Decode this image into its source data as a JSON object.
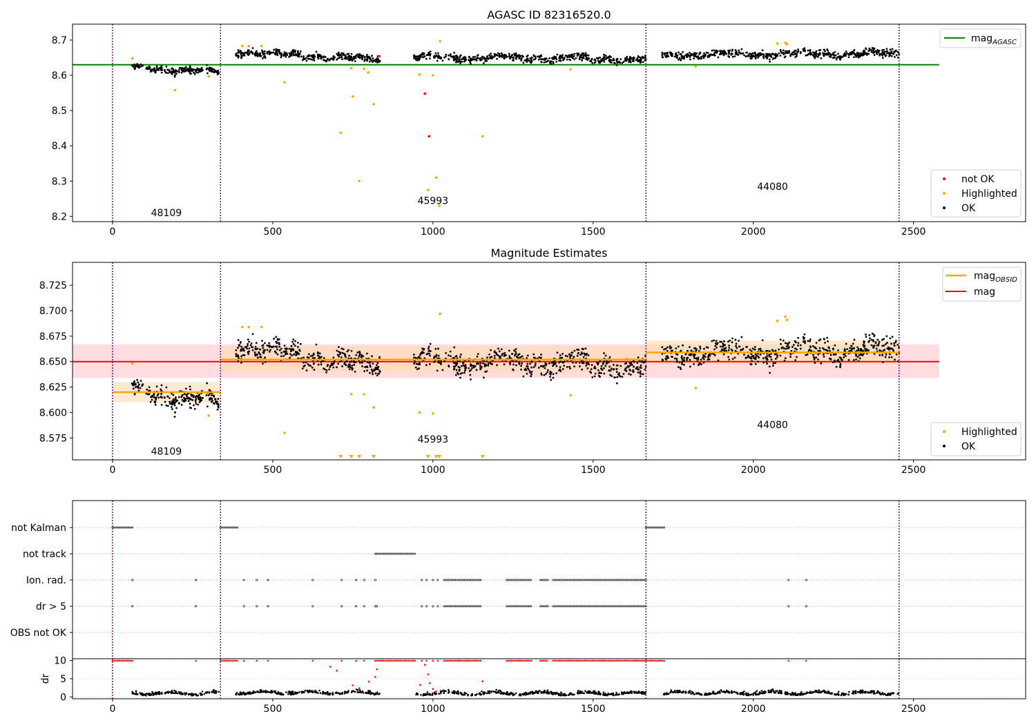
{
  "colors": {
    "ok": "#000000",
    "highlighted": "#ffa500",
    "not_ok": "#ff0000",
    "agasc_line": "#008000",
    "obs_mag": "#ffa500",
    "mag": "#ff0000",
    "obs_boundary": "#800080",
    "mag_band": "#ffc0cb",
    "obs_band": "#ffdab0"
  },
  "chart_data": [
    {
      "type": "scatter",
      "title": "AGASC ID 82316520.0",
      "xlim": [
        -125,
        2850
      ],
      "ylim": [
        8.185,
        8.745
      ],
      "xticks": [
        0,
        500,
        1000,
        1500,
        2000,
        2500
      ],
      "yticks": [
        8.2,
        8.3,
        8.4,
        8.5,
        8.6,
        8.7
      ],
      "grid": false,
      "legend_upper": {
        "position": "top-right",
        "entries": [
          {
            "label": "mag",
            "sub": "AGASC"
          }
        ]
      },
      "legend_lower": {
        "position": "bottom-right",
        "entries": [
          "not OK",
          "Highlighted",
          "OK"
        ]
      },
      "agasc_mag": 8.63,
      "agasc_x_range": [
        -125,
        2580
      ],
      "obsid_labels": [
        {
          "text": "48109",
          "x": 168,
          "y": 8.21
        },
        {
          "text": "45993",
          "x": 1000,
          "y": 8.245
        },
        {
          "text": "44080",
          "x": 2060,
          "y": 8.285
        }
      ],
      "obs_boundaries": [
        0,
        337,
        1665,
        2455
      ],
      "ok_segments": [
        {
          "x0": 60,
          "x1": 335,
          "level": 8.624,
          "trend": -0.016,
          "noise": 0.009,
          "count": 220
        },
        {
          "x0": 385,
          "x1": 835,
          "level": 8.666,
          "trend": -0.022,
          "noise": 0.009,
          "count": 360
        },
        {
          "x0": 940,
          "x1": 1665,
          "level": 8.652,
          "trend": -0.007,
          "noise": 0.01,
          "count": 520
        },
        {
          "x0": 1715,
          "x1": 2455,
          "level": 8.658,
          "trend": 0.004,
          "noise": 0.01,
          "count": 560
        }
      ],
      "highlighted": [
        {
          "x": 62,
          "y": 8.648
        },
        {
          "x": 195,
          "y": 8.558
        },
        {
          "x": 300,
          "y": 8.597
        },
        {
          "x": 405,
          "y": 8.683
        },
        {
          "x": 425,
          "y": 8.683
        },
        {
          "x": 465,
          "y": 8.683
        },
        {
          "x": 537,
          "y": 8.58
        },
        {
          "x": 712,
          "y": 8.437
        },
        {
          "x": 745,
          "y": 8.62
        },
        {
          "x": 750,
          "y": 8.54
        },
        {
          "x": 770,
          "y": 8.3
        },
        {
          "x": 785,
          "y": 8.618
        },
        {
          "x": 798,
          "y": 8.608
        },
        {
          "x": 815,
          "y": 8.518
        },
        {
          "x": 830,
          "y": 8.653
        },
        {
          "x": 958,
          "y": 8.602
        },
        {
          "x": 985,
          "y": 8.275
        },
        {
          "x": 1000,
          "y": 8.6
        },
        {
          "x": 1010,
          "y": 8.31
        },
        {
          "x": 1020,
          "y": 8.23
        },
        {
          "x": 1022,
          "y": 8.697
        },
        {
          "x": 1155,
          "y": 8.427
        },
        {
          "x": 1430,
          "y": 8.617
        },
        {
          "x": 1820,
          "y": 8.625
        },
        {
          "x": 2075,
          "y": 8.69
        },
        {
          "x": 2100,
          "y": 8.692
        },
        {
          "x": 2105,
          "y": 8.688
        }
      ],
      "not_ok": [
        {
          "x": 828,
          "y": 8.654
        },
        {
          "x": 975,
          "y": 8.548
        },
        {
          "x": 988,
          "y": 8.427
        }
      ]
    },
    {
      "type": "scatter",
      "title": "Magnitude Estimates",
      "xlim": [
        -125,
        2850
      ],
      "ylim": [
        8.5535,
        8.7475
      ],
      "xticks": [
        0,
        500,
        1000,
        1500,
        2000,
        2500
      ],
      "yticks": [
        8.575,
        8.6,
        8.625,
        8.65,
        8.675,
        8.7,
        8.725
      ],
      "ytick_labels": [
        "8.575",
        "8.600",
        "8.625",
        "8.650",
        "8.675",
        "8.700",
        "8.725"
      ],
      "grid": false,
      "legend_upper": {
        "position": "top-right",
        "entries": [
          {
            "label": "mag",
            "sub": "OBSID"
          },
          {
            "label": "mag",
            "sub": ""
          }
        ]
      },
      "legend_lower": {
        "position": "bottom-right",
        "entries": [
          "Highlighted",
          "OK"
        ]
      },
      "mag": 8.65,
      "mag_band": [
        8.634,
        8.667
      ],
      "mag_x_range": [
        -125,
        2580
      ],
      "obsid_labels": [
        {
          "text": "48109",
          "x": 168,
          "y": 8.562
        },
        {
          "text": "45993",
          "x": 1000,
          "y": 8.574
        },
        {
          "text": "44080",
          "x": 2060,
          "y": 8.588
        }
      ],
      "obs_mags": [
        {
          "x0": 0,
          "x1": 337,
          "mag": 8.62,
          "err": 0.01
        },
        {
          "x0": 337,
          "x1": 1665,
          "mag": 8.652,
          "err": 0.013
        },
        {
          "x0": 1665,
          "x1": 2455,
          "mag": 8.659,
          "err": 0.012
        }
      ],
      "obs_boundaries": [
        0,
        337,
        1665,
        2455
      ],
      "ok_segments": [
        {
          "x0": 60,
          "x1": 335,
          "level": 8.624,
          "trend": -0.016,
          "noise": 0.009,
          "count": 220
        },
        {
          "x0": 385,
          "x1": 835,
          "level": 8.666,
          "trend": -0.022,
          "noise": 0.009,
          "count": 360
        },
        {
          "x0": 940,
          "x1": 1665,
          "level": 8.652,
          "trend": -0.007,
          "noise": 0.01,
          "count": 520
        },
        {
          "x0": 1715,
          "x1": 2455,
          "level": 8.658,
          "trend": 0.004,
          "noise": 0.01,
          "count": 560
        }
      ],
      "highlighted": [
        {
          "x": 62,
          "y": 8.648
        },
        {
          "x": 300,
          "y": 8.597
        },
        {
          "x": 405,
          "y": 8.684
        },
        {
          "x": 425,
          "y": 8.684
        },
        {
          "x": 465,
          "y": 8.684
        },
        {
          "x": 537,
          "y": 8.58
        },
        {
          "x": 745,
          "y": 8.618
        },
        {
          "x": 785,
          "y": 8.618
        },
        {
          "x": 815,
          "y": 8.605
        },
        {
          "x": 958,
          "y": 8.6
        },
        {
          "x": 1000,
          "y": 8.599
        },
        {
          "x": 1022,
          "y": 8.697
        },
        {
          "x": 1430,
          "y": 8.617
        },
        {
          "x": 1820,
          "y": 8.624
        },
        {
          "x": 2075,
          "y": 8.69
        },
        {
          "x": 2100,
          "y": 8.694
        },
        {
          "x": 2105,
          "y": 8.691
        }
      ],
      "off_scale_markers": [
        712,
        745,
        770,
        815,
        985,
        1010,
        1020,
        1155
      ]
    },
    {
      "type": "scatter",
      "title": "",
      "xlim": [
        -125,
        2850
      ],
      "flag_rows": [
        "not Kalman",
        "not track",
        "Ion. rad.",
        "dr > 5",
        "OBS not OK"
      ],
      "flag_spans": {
        "not Kalman": [
          [
            0,
            62
          ],
          [
            337,
            390
          ],
          [
            1665,
            1722
          ]
        ],
        "not track": [
          [
            820,
            945
          ]
        ],
        "Ion. rad.": [
          [
            1035,
            1150
          ],
          [
            1230,
            1310
          ],
          [
            1335,
            1360
          ],
          [
            1375,
            1665
          ]
        ],
        "dr > 5": [
          [
            1035,
            1150
          ],
          [
            1230,
            1310
          ],
          [
            1335,
            1360
          ],
          [
            1375,
            1665
          ]
        ],
        "OBS not OK": []
      },
      "flag_points": {
        "Ion. rad.": [
          62,
          260,
          410,
          450,
          485,
          625,
          715,
          760,
          785,
          820,
          965,
          980,
          1000,
          1015,
          2110,
          2165
        ],
        "dr > 5": [
          62,
          260,
          410,
          450,
          485,
          625,
          715,
          760,
          785,
          820,
          825,
          965,
          980,
          1000,
          1015,
          2110,
          2165
        ]
      },
      "obs_boundaries": [
        0,
        337,
        1665,
        2455
      ]
    },
    {
      "type": "scatter",
      "title": "",
      "ylabel": "dr",
      "xlim": [
        -125,
        2850
      ],
      "ylim": [
        -0.5,
        10.5
      ],
      "xticks": [
        0,
        500,
        1000,
        1500,
        2000,
        2500
      ],
      "yticks": [
        0,
        5,
        10
      ],
      "clip_value": 10,
      "dr_segments": [
        {
          "x0": 60,
          "x1": 335,
          "base": 0.7,
          "count": 160
        },
        {
          "x0": 385,
          "x1": 835,
          "base": 0.9,
          "count": 260
        },
        {
          "x0": 940,
          "x1": 1665,
          "base": 0.7,
          "count": 420
        },
        {
          "x0": 1715,
          "x1": 2455,
          "base": 0.8,
          "count": 440
        }
      ],
      "clipped_spans": [
        [
          0,
          62
        ],
        [
          337,
          390
        ],
        [
          820,
          945
        ],
        [
          1035,
          1150
        ],
        [
          1230,
          1310
        ],
        [
          1335,
          1360
        ],
        [
          1375,
          1722
        ]
      ],
      "clipped_points": [
        62,
        260,
        410,
        450,
        485,
        625,
        715,
        760,
        785,
        965,
        980,
        1000,
        1015,
        2110,
        2165
      ],
      "red_mid": [
        {
          "x": 680,
          "y": 8.3
        },
        {
          "x": 700,
          "y": 7.2
        },
        {
          "x": 750,
          "y": 3.2
        },
        {
          "x": 770,
          "y": 2.4
        },
        {
          "x": 800,
          "y": 4.2
        },
        {
          "x": 820,
          "y": 5.5
        },
        {
          "x": 825,
          "y": 7.6
        },
        {
          "x": 960,
          "y": 3.3
        },
        {
          "x": 975,
          "y": 8.8
        },
        {
          "x": 985,
          "y": 6.2
        },
        {
          "x": 990,
          "y": 3.8
        },
        {
          "x": 1000,
          "y": 2.2
        },
        {
          "x": 1010,
          "y": 1.5
        },
        {
          "x": 1155,
          "y": 4.3
        }
      ],
      "obs_boundaries": [
        0,
        337,
        1665,
        2455
      ]
    }
  ]
}
